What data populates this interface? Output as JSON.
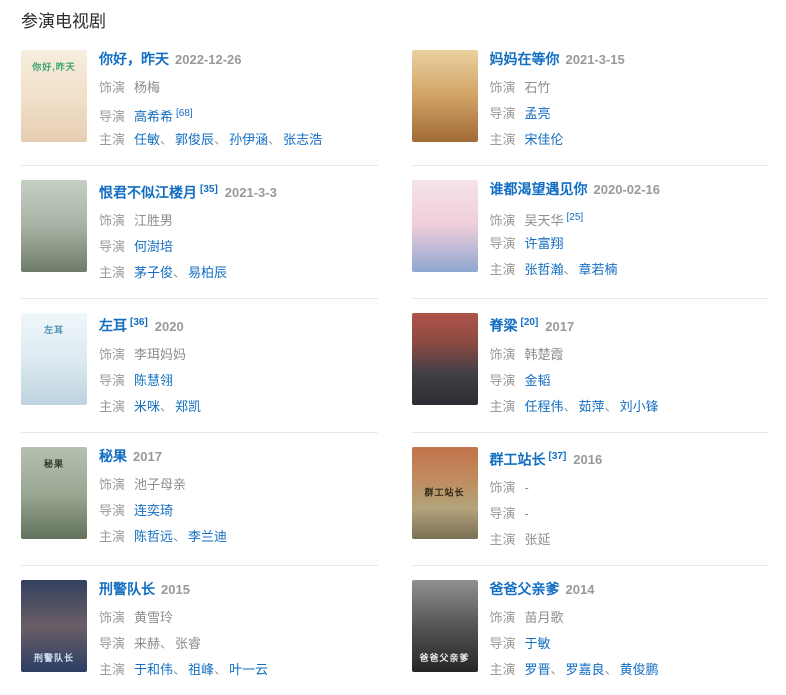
{
  "page": {
    "heading": "参演电视剧"
  },
  "link_color": "#136ec2",
  "shows": [
    {
      "title": "你好，昨天",
      "ref": "",
      "date": "2022-12-26",
      "poster": {
        "colors": [
          "#f7eedd",
          "#f1e0ca",
          "#e6ceb2"
        ],
        "label": "你好,昨天",
        "label_color": "#3aa573",
        "label_pos": "top"
      },
      "lines": [
        {
          "label": "饰演",
          "items": [
            {
              "t": "杨梅"
            }
          ]
        },
        {
          "label": "导演",
          "items": [
            {
              "t": "高希希",
              "link": true
            },
            {
              "t": "[68]",
              "ref": true
            }
          ]
        },
        {
          "label": "主演",
          "items": [
            {
              "t": "任敏",
              "link": true
            },
            {
              "t": "郭俊辰",
              "link": true
            },
            {
              "t": "孙伊涵",
              "link": true
            },
            {
              "t": "张志浩",
              "link": true
            }
          ]
        }
      ]
    },
    {
      "title": "妈妈在等你",
      "ref": "",
      "date": "2021-3-15",
      "poster": {
        "colors": [
          "#ead1a0",
          "#d2a266",
          "#a06a38"
        ],
        "label": ""
      },
      "lines": [
        {
          "label": "饰演",
          "items": [
            {
              "t": "石竹"
            }
          ]
        },
        {
          "label": "导演",
          "items": [
            {
              "t": "孟亮",
              "link": true
            }
          ]
        },
        {
          "label": "主演",
          "items": [
            {
              "t": "宋佳伦",
              "link": true
            }
          ]
        }
      ]
    },
    {
      "title": "恨君不似江楼月",
      "ref": "[35]",
      "date": "2021-3-3",
      "poster": {
        "colors": [
          "#c6cfc4",
          "#a7b2a4",
          "#707c6a"
        ],
        "label": ""
      },
      "lines": [
        {
          "label": "饰演",
          "items": [
            {
              "t": "江胜男"
            }
          ]
        },
        {
          "label": "导演",
          "items": [
            {
              "t": "何澍培",
              "link": true
            }
          ]
        },
        {
          "label": "主演",
          "items": [
            {
              "t": "茅子俊",
              "link": true
            },
            {
              "t": "易柏辰",
              "link": true
            }
          ]
        }
      ]
    },
    {
      "title": "谁都渴望遇见你",
      "ref": "",
      "date": "2020-02-16",
      "poster": {
        "colors": [
          "#f6e3ea",
          "#eecdd9",
          "#8ea6d1"
        ],
        "label": ""
      },
      "lines": [
        {
          "label": "饰演",
          "items": [
            {
              "t": "吴天华"
            },
            {
              "t": "[25]",
              "ref": true
            }
          ]
        },
        {
          "label": "导演",
          "items": [
            {
              "t": "许富翔",
              "link": true
            }
          ]
        },
        {
          "label": "主演",
          "items": [
            {
              "t": "张哲瀚",
              "link": true
            },
            {
              "t": "章若楠",
              "link": true
            }
          ]
        }
      ]
    },
    {
      "title": "左耳",
      "ref": "[36]",
      "date": "2020",
      "poster": {
        "colors": [
          "#f0f7fa",
          "#ddeaf1",
          "#bed3de"
        ],
        "label": "左耳",
        "label_color": "#4f94b5",
        "label_pos": "top"
      },
      "lines": [
        {
          "label": "饰演",
          "items": [
            {
              "t": "李珥妈妈"
            }
          ]
        },
        {
          "label": "导演",
          "items": [
            {
              "t": "陈慧翎",
              "link": true
            }
          ]
        },
        {
          "label": "主演",
          "items": [
            {
              "t": "米咪",
              "link": true
            },
            {
              "t": "郑凯",
              "link": true
            }
          ]
        }
      ]
    },
    {
      "title": "脊梁",
      "ref": "[20]",
      "date": "2017",
      "poster": {
        "colors": [
          "#b0544a",
          "#8a4a42",
          "#3f3f46",
          "#2c2c32"
        ],
        "label": ""
      },
      "lines": [
        {
          "label": "饰演",
          "items": [
            {
              "t": "韩楚霞"
            }
          ]
        },
        {
          "label": "导演",
          "items": [
            {
              "t": "金韬",
              "link": true
            }
          ]
        },
        {
          "label": "主演",
          "items": [
            {
              "t": "任程伟",
              "link": true
            },
            {
              "t": "茹萍",
              "link": true
            },
            {
              "t": "刘小锋",
              "link": true
            }
          ]
        }
      ]
    },
    {
      "title": "秘果",
      "ref": "",
      "date": "2017",
      "poster": {
        "colors": [
          "#b6c0b0",
          "#9aa893",
          "#62715c"
        ],
        "label": "秘果",
        "label_color": "#2e3a2e",
        "label_pos": "top"
      },
      "lines": [
        {
          "label": "饰演",
          "items": [
            {
              "t": "池子母亲"
            }
          ]
        },
        {
          "label": "导演",
          "items": [
            {
              "t": "连奕琦",
              "link": true
            }
          ]
        },
        {
          "label": "主演",
          "items": [
            {
              "t": "陈哲远",
              "link": true
            },
            {
              "t": "李兰迪",
              "link": true
            }
          ]
        }
      ]
    },
    {
      "title": "群工站长",
      "ref": "[37]",
      "date": "2016",
      "poster": {
        "colors": [
          "#c2734c",
          "#c08a5c",
          "#b3a37a",
          "#7a6f55"
        ],
        "label": "群工站长",
        "label_color": "#332a18",
        "label_pos": "middle"
      },
      "lines": [
        {
          "label": "饰演",
          "items": [
            {
              "t": "-"
            }
          ]
        },
        {
          "label": "导演",
          "items": [
            {
              "t": "-"
            }
          ]
        },
        {
          "label": "主演",
          "items": [
            {
              "t": "张延"
            }
          ]
        }
      ]
    },
    {
      "title": "刑警队长",
      "ref": "",
      "date": "2015",
      "poster": {
        "colors": [
          "#31415f",
          "#6b5e66",
          "#2c3e63"
        ],
        "label": "刑警队长",
        "label_color": "#cfe0f5",
        "label_pos": "bottom"
      },
      "lines": [
        {
          "label": "饰演",
          "items": [
            {
              "t": "黄雪玲"
            }
          ]
        },
        {
          "label": "导演",
          "items": [
            {
              "t": "来赫"
            },
            {
              "t": "张睿"
            }
          ]
        },
        {
          "label": "主演",
          "items": [
            {
              "t": "于和伟",
              "link": true
            },
            {
              "t": "祖峰",
              "link": true
            },
            {
              "t": "叶一云",
              "link": true
            }
          ]
        }
      ]
    },
    {
      "title": "爸爸父亲爹",
      "ref": "",
      "date": "2014",
      "poster": {
        "colors": [
          "#909090",
          "#555555",
          "#262626"
        ],
        "label": "爸爸父亲爹",
        "label_color": "#e8e8e8",
        "label_pos": "bottom"
      },
      "lines": [
        {
          "label": "饰演",
          "items": [
            {
              "t": "苗月歌"
            }
          ]
        },
        {
          "label": "导演",
          "items": [
            {
              "t": "于敏",
              "link": true
            }
          ]
        },
        {
          "label": "主演",
          "items": [
            {
              "t": "罗晋",
              "link": true
            },
            {
              "t": "罗嘉良",
              "link": true
            },
            {
              "t": "黄俊鹏",
              "link": true
            }
          ]
        }
      ]
    }
  ]
}
